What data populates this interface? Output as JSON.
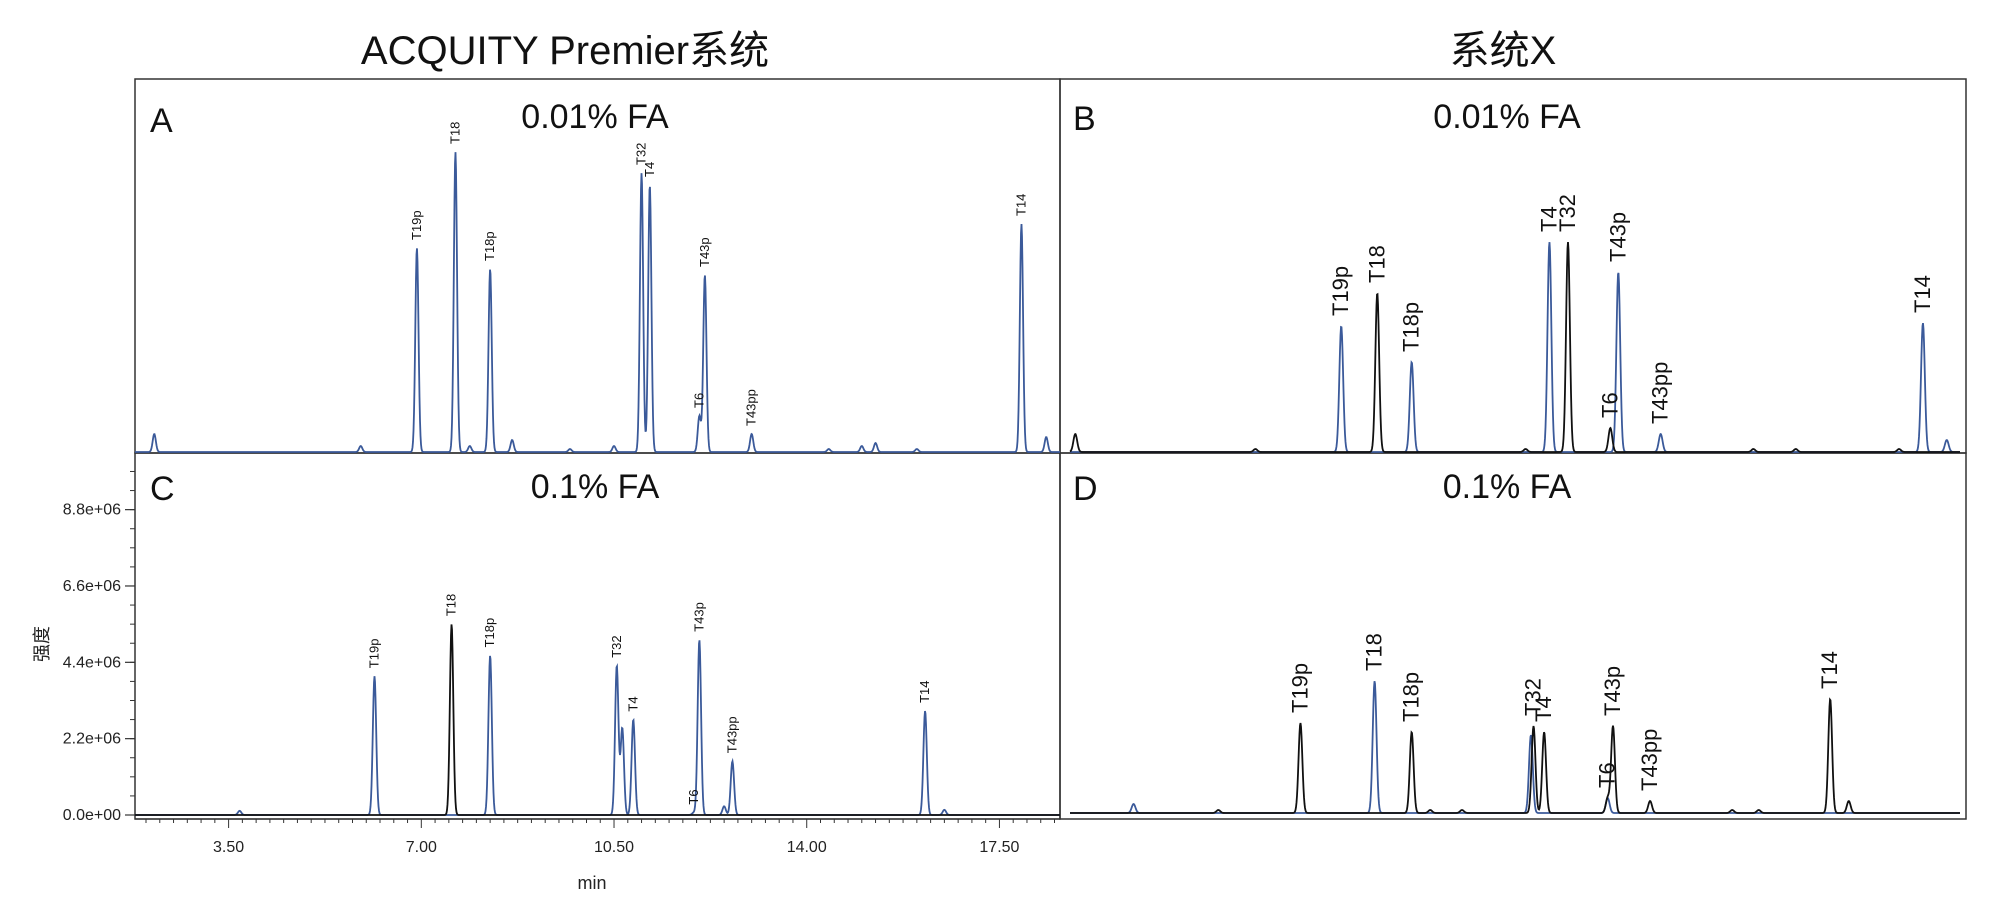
{
  "titles": {
    "left": "ACQUITY Premier系统",
    "right": "系统X"
  },
  "chart_data": [
    {
      "type": "line",
      "panel": "A",
      "condition": "0.01% FA",
      "series_color": "#3b5a9a",
      "peaks": [
        {
          "label": "",
          "rt": 2.15,
          "height": 0.06
        },
        {
          "label": "",
          "rt": 5.9,
          "height": 0.02
        },
        {
          "label": "T19p",
          "rt": 6.92,
          "height": 0.68
        },
        {
          "label": "T18",
          "rt": 7.62,
          "height": 1.0
        },
        {
          "label": "",
          "rt": 7.88,
          "height": 0.02
        },
        {
          "label": "T18p",
          "rt": 8.25,
          "height": 0.61
        },
        {
          "label": "",
          "rt": 8.65,
          "height": 0.04
        },
        {
          "label": "",
          "rt": 9.7,
          "height": 0.01
        },
        {
          "label": "",
          "rt": 10.5,
          "height": 0.02
        },
        {
          "label": "T32",
          "rt": 11.0,
          "height": 0.93
        },
        {
          "label": "T4",
          "rt": 11.15,
          "height": 0.89
        },
        {
          "label": "T6",
          "rt": 12.05,
          "height": 0.12
        },
        {
          "label": "T43p",
          "rt": 12.15,
          "height": 0.59
        },
        {
          "label": "T43pp",
          "rt": 13.0,
          "height": 0.06
        },
        {
          "label": "",
          "rt": 14.4,
          "height": 0.01
        },
        {
          "label": "",
          "rt": 15.0,
          "height": 0.02
        },
        {
          "label": "",
          "rt": 15.25,
          "height": 0.03
        },
        {
          "label": "",
          "rt": 16.0,
          "height": 0.01
        },
        {
          "label": "T14",
          "rt": 17.9,
          "height": 0.76
        },
        {
          "label": "",
          "rt": 18.35,
          "height": 0.05
        }
      ]
    },
    {
      "type": "line",
      "panel": "B",
      "condition": "0.01% FA",
      "series": [
        {
          "color": "#3b5a9a",
          "peaks": [
            {
              "label": "T19p",
              "rt": 6.92,
              "height": 0.42
            },
            {
              "label": "T18p",
              "rt": 8.25,
              "height": 0.3
            },
            {
              "label": "T4",
              "rt": 10.85,
              "height": 0.7
            },
            {
              "label": "T43p",
              "rt": 12.15,
              "height": 0.6
            },
            {
              "label": "T43pp",
              "rt": 12.95,
              "height": 0.06
            },
            {
              "label": "T14",
              "rt": 17.9,
              "height": 0.43
            },
            {
              "label": "",
              "rt": 18.35,
              "height": 0.04
            }
          ]
        },
        {
          "color": "#111111",
          "peaks": [
            {
              "label": "",
              "rt": 1.9,
              "height": 0.06
            },
            {
              "label": "",
              "rt": 5.3,
              "height": 0.01
            },
            {
              "label": "T18",
              "rt": 7.6,
              "height": 0.53
            },
            {
              "label": "",
              "rt": 10.4,
              "height": 0.01
            },
            {
              "label": "T32",
              "rt": 11.2,
              "height": 0.7
            },
            {
              "label": "T6",
              "rt": 12.0,
              "height": 0.08
            },
            {
              "label": "",
              "rt": 14.7,
              "height": 0.01
            },
            {
              "label": "",
              "rt": 15.5,
              "height": 0.01
            },
            {
              "label": "",
              "rt": 17.45,
              "height": 0.01
            }
          ]
        }
      ]
    },
    {
      "type": "line",
      "panel": "C",
      "condition": "0.1% FA",
      "xlabel": "min",
      "ylabel": "强度",
      "x_ticks": [
        "3.50",
        "7.00",
        "10.50",
        "14.00",
        "17.50"
      ],
      "x_tick_values": [
        3.5,
        7.0,
        10.5,
        14.0,
        17.5
      ],
      "xlim": [
        1.8,
        18.6
      ],
      "y_ticks": [
        "0.0e+00",
        "2.2e+06",
        "4.4e+06",
        "6.6e+06",
        "8.8e+06"
      ],
      "y_tick_values": [
        0,
        2200000,
        4400000,
        6600000,
        8800000
      ],
      "ylim": [
        0,
        10000000
      ],
      "series": [
        {
          "color": "#3b5a9a",
          "peaks": [
            {
              "label": "",
              "rt": 3.7,
              "height": 120000
            },
            {
              "label": "T19p",
              "rt": 6.15,
              "height": 4000000
            },
            {
              "label": "T18p",
              "rt": 8.25,
              "height": 4600000
            },
            {
              "label": "T32",
              "rt": 10.55,
              "height": 4300000
            },
            {
              "label": "",
              "rt": 10.65,
              "height": 2500000
            },
            {
              "label": "T4",
              "rt": 10.85,
              "height": 2750000
            },
            {
              "label": "T6",
              "rt": 11.95,
              "height": 70000
            },
            {
              "label": "T43p",
              "rt": 12.05,
              "height": 5050000
            },
            {
              "label": "",
              "rt": 12.5,
              "height": 250000
            },
            {
              "label": "T43pp",
              "rt": 12.65,
              "height": 1550000
            },
            {
              "label": "T14",
              "rt": 16.15,
              "height": 3000000
            },
            {
              "label": "",
              "rt": 16.5,
              "height": 150000
            }
          ]
        },
        {
          "color": "#111111",
          "peaks": [
            {
              "label": "T18",
              "rt": 7.55,
              "height": 5500000
            }
          ]
        }
      ]
    },
    {
      "type": "line",
      "panel": "D",
      "condition": "0.1% FA",
      "series": [
        {
          "color": "#3b5a9a",
          "peaks": [
            {
              "label": "",
              "rt": 3.0,
              "height": 0.03
            },
            {
              "label": "T18",
              "rt": 7.55,
              "height": 0.44
            },
            {
              "label": "",
              "rt": 10.5,
              "height": 0.26
            },
            {
              "label": "",
              "rt": 11.95,
              "height": 0.05
            }
          ]
        },
        {
          "color": "#111111",
          "peaks": [
            {
              "label": "",
              "rt": 4.6,
              "height": 0.01
            },
            {
              "label": "T19p",
              "rt": 6.15,
              "height": 0.3
            },
            {
              "label": "T18p",
              "rt": 8.25,
              "height": 0.27
            },
            {
              "label": "",
              "rt": 8.6,
              "height": 0.01
            },
            {
              "label": "",
              "rt": 9.2,
              "height": 0.01
            },
            {
              "label": "T32",
              "rt": 10.55,
              "height": 0.29
            },
            {
              "label": "T4",
              "rt": 10.75,
              "height": 0.27
            },
            {
              "label": "T6",
              "rt": 11.95,
              "height": 0.05
            },
            {
              "label": "T43p",
              "rt": 12.05,
              "height": 0.29
            },
            {
              "label": "T43pp",
              "rt": 12.75,
              "height": 0.04
            },
            {
              "label": "",
              "rt": 14.3,
              "height": 0.01
            },
            {
              "label": "",
              "rt": 14.8,
              "height": 0.01
            },
            {
              "label": "T14",
              "rt": 16.15,
              "height": 0.38
            },
            {
              "label": "",
              "rt": 16.5,
              "height": 0.04
            }
          ]
        }
      ]
    }
  ]
}
